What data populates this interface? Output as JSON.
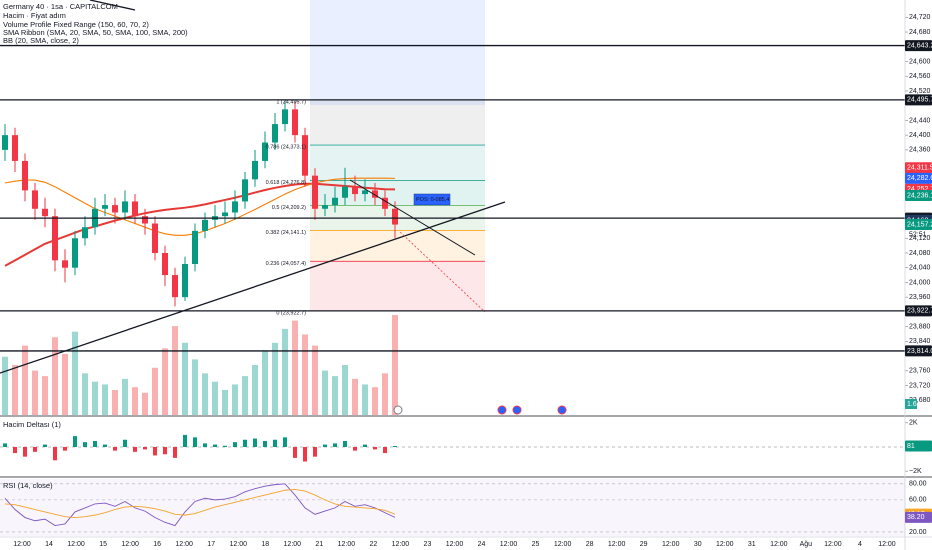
{
  "chart_data": [
    {
      "type": "candlestick",
      "title": "Germany 40 · 1sa · CAPITALCOM",
      "legend": [
        "Hacim · Fiyat adım",
        "Volume Profile Fixed Range (150, 60, 70, 2)",
        "SMA Ribbon (SMA, 20, SMA, 50, SMA, 100, SMA, 200)",
        "BB (20, SMA, close, 2)"
      ],
      "open": [
        24360,
        24400,
        24330,
        24250,
        24200,
        24180,
        24060,
        24040,
        24120,
        24150,
        24200,
        24210,
        24190,
        24220,
        24180,
        24160,
        24080,
        24020,
        23960,
        24050,
        24140,
        24170,
        24180,
        24190,
        24220,
        24280,
        24330,
        24380,
        24430,
        24470,
        24400,
        24290,
        24200,
        24210,
        24230,
        24260,
        24240,
        24250,
        24230,
        24200
      ],
      "high": [
        24430,
        24420,
        24350,
        24270,
        24230,
        24200,
        24090,
        24140,
        24180,
        24230,
        24240,
        24230,
        24250,
        24240,
        24200,
        24180,
        24100,
        24040,
        24070,
        24160,
        24190,
        24210,
        24220,
        24250,
        24300,
        24360,
        24410,
        24460,
        24495.7,
        24490,
        24420,
        24310,
        24240,
        24260,
        24311.5,
        24290,
        24280,
        24270,
        24250,
        24220
      ],
      "low": [
        24330,
        24300,
        24220,
        24170,
        24150,
        24030,
        24000,
        24020,
        24100,
        24130,
        24180,
        24160,
        24170,
        24160,
        24130,
        24060,
        23990,
        23935,
        23950,
        24030,
        24120,
        24150,
        24160,
        24170,
        24200,
        24260,
        24310,
        24360,
        24410,
        24380,
        24260,
        24170,
        24180,
        24190,
        24210,
        24220,
        24220,
        24210,
        24180,
        24120
      ],
      "close": [
        24400,
        24330,
        24250,
        24200,
        24180,
        24060,
        24040,
        24120,
        24150,
        24200,
        24210,
        24190,
        24220,
        24180,
        24160,
        24080,
        24020,
        23960,
        24050,
        24140,
        24170,
        24180,
        24190,
        24220,
        24280,
        24330,
        24380,
        24430,
        24470,
        24400,
        24290,
        24200,
        24210,
        24230,
        24260,
        24240,
        24250,
        24230,
        24200,
        24157.2
      ],
      "volume": [
        2100,
        1800,
        2500,
        1600,
        1400,
        2800,
        2200,
        3000,
        1500,
        1200,
        1100,
        900,
        1300,
        1000,
        800,
        1700,
        2400,
        3200,
        2600,
        2000,
        1500,
        1200,
        900,
        1100,
        1400,
        1800,
        2300,
        2600,
        3100,
        3400,
        2900,
        2500,
        1600,
        1400,
        1800,
        1300,
        1100,
        1000,
        1500,
        3600
      ],
      "volume_tag": "1.6",
      "overlays": [
        {
          "color": "#e53935",
          "values": [
            24045,
            24060,
            24075,
            24090,
            24105,
            24115,
            24125,
            24135,
            24145,
            24152,
            24160,
            24168,
            24175,
            24182,
            24188,
            24193,
            24197,
            24200,
            24203,
            24207,
            24212,
            24218,
            24224,
            24230,
            24237,
            24244,
            24251,
            24257,
            24262,
            24266,
            24268,
            24268,
            24266,
            24264,
            24262,
            24260,
            24257,
            24255,
            24253,
            24252.7
          ]
        },
        {
          "color": "#f57c00",
          "values": [
            24270,
            24275,
            24278,
            24278,
            24272,
            24260,
            24245,
            24230,
            24215,
            24200,
            24190,
            24180,
            24170,
            24160,
            24150,
            24140,
            24132,
            24128,
            24128,
            24132,
            24140,
            24150,
            24160,
            24172,
            24185,
            24198,
            24212,
            24226,
            24240,
            24252,
            24262,
            24270,
            24276,
            24280,
            24282,
            24283,
            24283,
            24283,
            24283,
            24282.6
          ]
        }
      ],
      "ylim": [
        23640,
        24767
      ],
      "yticks": [
        {
          "value": 24720,
          "label": "24,720"
        },
        {
          "value": 24680,
          "label": "24,680"
        },
        {
          "value": 24600,
          "label": "24,600"
        },
        {
          "value": 24560,
          "label": "24,560"
        },
        {
          "value": 24520,
          "label": "24,520"
        },
        {
          "value": 24440,
          "label": "24,440"
        },
        {
          "value": 24400,
          "label": "24,400"
        },
        {
          "value": 24360,
          "label": "24,360"
        },
        {
          "value": 24120,
          "label": "24,120"
        },
        {
          "value": 24080,
          "label": "24,080"
        },
        {
          "value": 24040,
          "label": "24,040"
        },
        {
          "value": 24000,
          "label": "24,000"
        },
        {
          "value": 23960,
          "label": "23,960"
        },
        {
          "value": 23880,
          "label": "23,880"
        },
        {
          "value": 23840,
          "label": "23,840"
        },
        {
          "value": 23760,
          "label": "23,760"
        },
        {
          "value": 23720,
          "label": "23,720"
        },
        {
          "value": 23680,
          "label": "23,680"
        }
      ],
      "levels": [
        {
          "value": 24643.2,
          "label": "24,643.2"
        },
        {
          "value": 24495.7,
          "label": "24,495.7"
        },
        {
          "value": 24174.7,
          "label": "24,174.7"
        },
        {
          "value": 23922.7,
          "label": "23,922.7"
        },
        {
          "value": 23814.0,
          "label": "23,814.0"
        }
      ],
      "price_tags": [
        {
          "value": 24311.5,
          "label": "24,311.5",
          "color": "#f23645"
        },
        {
          "value": 24282.6,
          "label": "24,282.6",
          "color": "#2962ff"
        },
        {
          "value": 24252.7,
          "label": "24,252.7",
          "color": "#f23645"
        },
        {
          "value": 24236.1,
          "label": "24,236.1",
          "color": "#089981"
        },
        {
          "value": 24168.4,
          "label": "24,168.4",
          "color": "#1e3a5f"
        },
        {
          "value": 24157.2,
          "label": "24,157.2",
          "color": "#089981"
        }
      ],
      "countdown": "52:51",
      "fib": [
        {
          "value": 24495.7,
          "label": "1 (24,495.7)",
          "color": "#787b86"
        },
        {
          "value": 24373.1,
          "label": "0.786 (24,373.1)",
          "color": "#26a69a"
        },
        {
          "value": 24276.8,
          "label": "0.618 (24,276.8)",
          "color": "#089981"
        },
        {
          "value": 24209.2,
          "label": "0.5 (24,209.2)",
          "color": "#4caf50"
        },
        {
          "value": 24141.1,
          "label": "0.382 (24,141.1)",
          "color": "#ff9800"
        },
        {
          "value": 24057.4,
          "label": "0.236 (24,057.4)",
          "color": "#f23645"
        },
        {
          "value": 23922.7,
          "label": "0 (23,922.7)",
          "color": "#787b86"
        }
      ],
      "position_label": "POS: 0-085,4",
      "x_labels": [
        "12:00",
        "14",
        "12:00",
        "15",
        "12:00",
        "16",
        "12:00",
        "17",
        "12:00",
        "18",
        "12:00",
        "21",
        "12:00",
        "22",
        "12:00",
        "23",
        "12:00",
        "24",
        "12:00",
        "25",
        "12:00",
        "28",
        "12:00",
        "29",
        "12:00",
        "30",
        "12:00",
        "31",
        "12:00",
        "Ağu",
        "12:00",
        "4",
        "12:00"
      ]
    },
    {
      "type": "bar",
      "title": "Hacim Deltası (1)",
      "values": [
        300,
        -500,
        -800,
        -400,
        200,
        -1100,
        -300,
        900,
        400,
        500,
        200,
        -300,
        600,
        -400,
        -200,
        -700,
        -600,
        -900,
        1000,
        800,
        300,
        200,
        100,
        400,
        600,
        700,
        500,
        600,
        800,
        -900,
        -1200,
        -800,
        200,
        300,
        500,
        -300,
        200,
        -200,
        -500,
        81
      ],
      "ylim": [
        -2400,
        2400
      ],
      "yticks": [
        {
          "value": 2000,
          "label": "2K"
        },
        {
          "value": -2000,
          "label": "−2K"
        }
      ]
    },
    {
      "type": "line",
      "title": "RSI (14, close)",
      "series": [
        {
          "color": "#7e57c2",
          "values": [
            62,
            48,
            38,
            34,
            36,
            28,
            30,
            45,
            50,
            55,
            56,
            52,
            58,
            50,
            46,
            38,
            32,
            28,
            45,
            58,
            62,
            60,
            61,
            64,
            70,
            74,
            77,
            79,
            80,
            66,
            50,
            42,
            46,
            50,
            58,
            52,
            54,
            50,
            44,
            38.2
          ]
        },
        {
          "color": "#f9a825",
          "values": [
            55,
            54,
            51,
            48,
            45,
            42,
            39,
            38,
            39,
            41,
            44,
            48,
            51,
            52,
            51,
            49,
            46,
            42,
            41,
            43,
            47,
            51,
            54,
            57,
            60,
            63,
            66,
            69,
            72,
            73,
            71,
            66,
            60,
            55,
            52,
            51,
            50,
            49,
            47,
            42.17
          ]
        }
      ],
      "last_tag": {
        "value": 38.2,
        "label": "38.20"
      },
      "ylim": [
        15,
        86
      ],
      "yticks": [
        {
          "value": 80,
          "label": "80.00"
        },
        {
          "value": 60,
          "label": "60.00"
        },
        {
          "value": 20,
          "label": "20.00"
        }
      ]
    }
  ]
}
